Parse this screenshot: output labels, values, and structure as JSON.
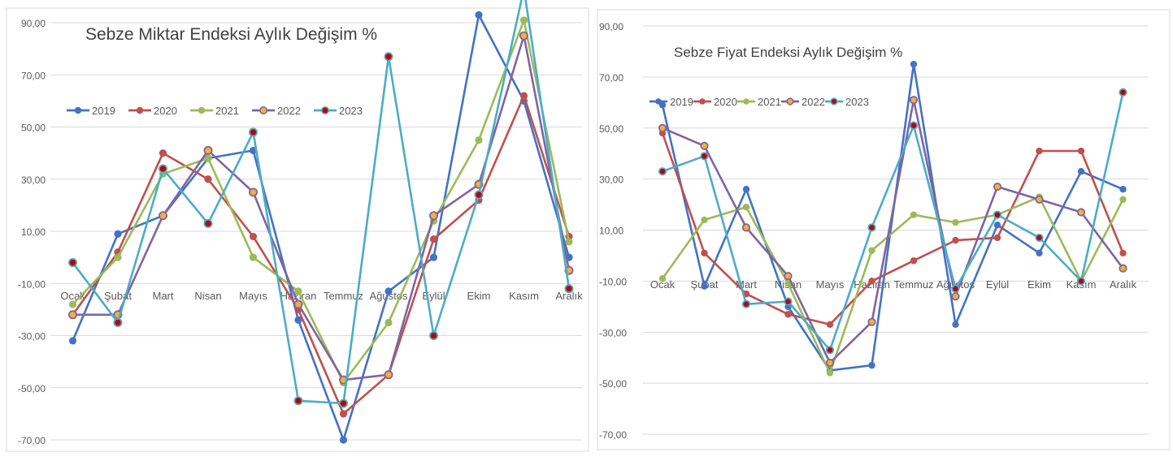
{
  "chart_data": [
    {
      "type": "line",
      "title": "Sebze Miktar Endeksi Aylık Değişim %",
      "categories": [
        "Ocak",
        "Şubat",
        "Mart",
        "Nisan",
        "Mayıs",
        "Haziran",
        "Temmuz",
        "Ağustos",
        "Eylül",
        "Ekim",
        "Kasım",
        "Aralık"
      ],
      "yticks": [
        "90,00",
        "70,00",
        "50,00",
        "30,00",
        "10,00",
        "-10,00",
        "-30,00",
        "-50,00",
        "-70,00"
      ],
      "ylim": [
        -70,
        90
      ],
      "grid": true,
      "legend": "top-left",
      "series": [
        {
          "name": "2019",
          "color": "#4472C4",
          "values": [
            -32,
            9,
            16,
            38,
            41,
            -24,
            -70,
            -13,
            0,
            93,
            60,
            0
          ]
        },
        {
          "name": "2020",
          "color": "#C0504D",
          "values": [
            -22,
            2,
            40,
            30,
            8,
            -20,
            -60,
            -45,
            7,
            22,
            62,
            8
          ]
        },
        {
          "name": "2021",
          "color": "#9BBB59",
          "values": [
            -18,
            0,
            32,
            38,
            0,
            -13,
            -48,
            -25,
            14,
            45,
            91,
            6
          ]
        },
        {
          "name": "2022",
          "color": "#8064A2",
          "values": [
            -22,
            -22,
            16,
            41,
            25,
            -18,
            -47,
            -45,
            16,
            28,
            85,
            -5
          ]
        },
        {
          "name": "2023",
          "color": "#4BACC6",
          "values": [
            -2,
            -25,
            34,
            13,
            48,
            -55,
            -56,
            77,
            -30,
            24,
            103,
            -12
          ]
        }
      ]
    },
    {
      "type": "line",
      "title": "Sebze Fiyat Endeksi Aylık Değişim %",
      "categories": [
        "Ocak",
        "Şubat",
        "Mart",
        "Nisan",
        "Mayıs",
        "Haziran",
        "Temmuz",
        "Ağustos",
        "Eylül",
        "Ekim",
        "Kasım",
        "Aralık"
      ],
      "yticks": [
        "90,00",
        "70,00",
        "50,00",
        "30,00",
        "10,00",
        "-10,00",
        "-30,00",
        "-50,00",
        "-70,00"
      ],
      "ylim": [
        -70,
        90
      ],
      "grid": true,
      "legend": "top-left",
      "series": [
        {
          "name": "2019",
          "color": "#4472C4",
          "values": [
            59,
            -12,
            26,
            -20,
            -45,
            -43,
            75,
            -27,
            12,
            1,
            33,
            26
          ]
        },
        {
          "name": "2020",
          "color": "#C0504D",
          "values": [
            48,
            1,
            -15,
            -23,
            -27,
            -10,
            -2,
            6,
            7,
            41,
            41,
            1
          ]
        },
        {
          "name": "2021",
          "color": "#9BBB59",
          "values": [
            -9,
            14,
            19,
            -11,
            -46,
            2,
            16,
            13,
            16,
            23,
            -10,
            22
          ]
        },
        {
          "name": "2022",
          "color": "#8064A2",
          "values": [
            50,
            43,
            11,
            -8,
            -42,
            -26,
            61,
            -16,
            27,
            22,
            17,
            -5
          ]
        },
        {
          "name": "2023",
          "color": "#4BACC6",
          "values": [
            33,
            39,
            -19,
            -18,
            -37,
            11,
            51,
            -13,
            16,
            7,
            -10,
            64
          ]
        }
      ]
    }
  ]
}
